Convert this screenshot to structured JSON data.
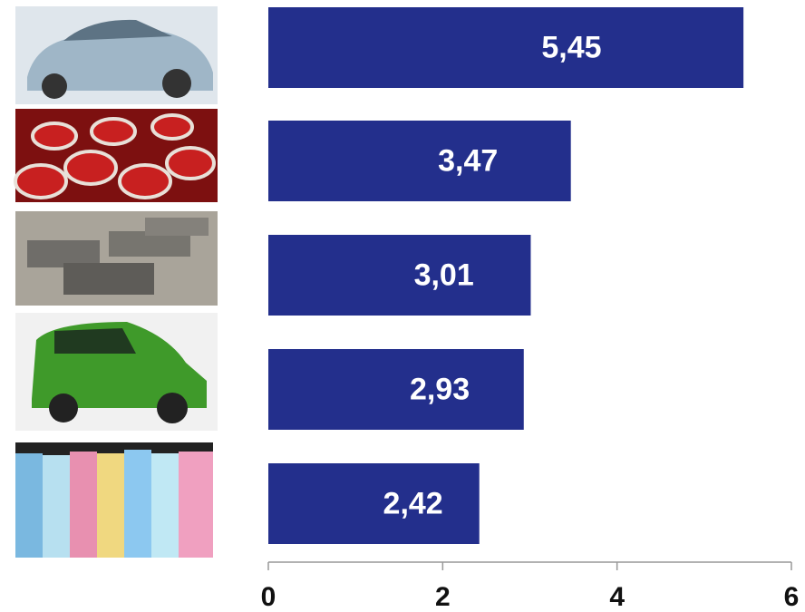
{
  "chart_data": {
    "type": "bar",
    "orientation": "horizontal",
    "categories": [
      null,
      null,
      null,
      null,
      null
    ],
    "values": [
      5.45,
      3.47,
      3.01,
      2.93,
      2.42
    ],
    "value_labels": [
      "5,45",
      "3,47",
      "3,01",
      "2,93",
      "2,42"
    ],
    "color": "#232f8c",
    "xlim": [
      0,
      6
    ],
    "xticks": [
      0,
      2,
      4,
      6
    ]
  }
}
